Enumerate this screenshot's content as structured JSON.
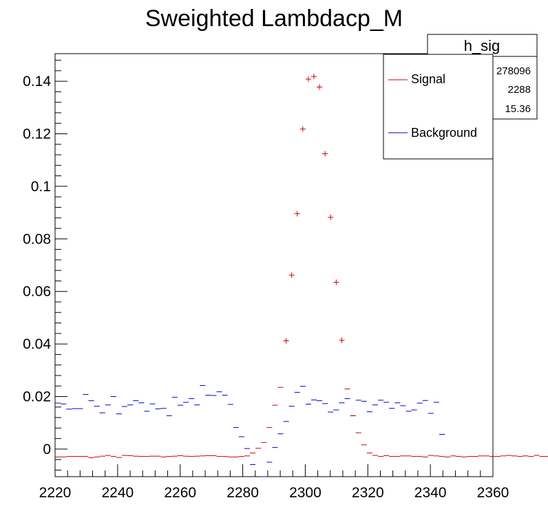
{
  "chart_data": {
    "type": "scatter",
    "title": "Sweighted Lambdacp_M",
    "xlabel": "",
    "ylabel": "",
    "xlim": [
      2220,
      2360
    ],
    "ylim": [
      -0.0105,
      0.1505
    ],
    "x_ticks": [
      2220,
      2240,
      2260,
      2280,
      2300,
      2320,
      2340,
      2360
    ],
    "y_ticks": [
      0,
      0.02,
      0.04,
      0.06,
      0.08,
      0.1,
      0.12,
      0.14
    ],
    "y_tick_labels": [
      "0",
      "0.02",
      "0.04",
      "0.06",
      "0.08",
      "0.1",
      "0.12",
      "0.14"
    ],
    "bin_start": 2220,
    "bin_width": 1.78,
    "stats_box": {
      "title": "h_sig",
      "values": [
        "278096",
        "2288",
        "15.36"
      ]
    },
    "legend": {
      "placement": "top-right"
    },
    "series": [
      {
        "name": "Signal",
        "color": "#cc0000",
        "values": [
          -0.003,
          -0.003,
          -0.0028,
          -0.0028,
          -0.0028,
          -0.0028,
          -0.0033,
          -0.003,
          -0.0027,
          -0.0024,
          -0.0028,
          -0.0032,
          -0.0024,
          -0.0025,
          -0.0027,
          -0.0028,
          -0.0028,
          -0.0027,
          -0.0027,
          -0.003,
          -0.0028,
          -0.0027,
          -0.0025,
          -0.0027,
          -0.0028,
          -0.0027,
          -0.0026,
          -0.0025,
          -0.0025,
          -0.0028,
          -0.0028,
          -0.003,
          -0.003,
          -0.0028,
          -0.0026,
          -0.0015,
          0.0003,
          0.0025,
          0.0082,
          0.0167,
          0.0235,
          0.0412,
          0.0662,
          0.0896,
          0.1218,
          0.1408,
          0.1418,
          0.1378,
          0.1124,
          0.0882,
          0.0635,
          0.0414,
          0.0229,
          0.0127,
          0.0062,
          0.0016,
          -0.0015,
          -0.0024,
          -0.0028,
          -0.0025,
          -0.0028,
          -0.0028,
          -0.0026,
          -0.0026,
          -0.0028,
          -0.0028,
          -0.003,
          -0.0024,
          -0.0026,
          -0.0028,
          -0.003,
          -0.0026,
          -0.0028,
          -0.003,
          -0.0028,
          -0.0028,
          -0.0026,
          -0.0026,
          -0.0028,
          -0.0028,
          -0.0026,
          -0.0024,
          -0.0026,
          -0.0028,
          -0.0026,
          -0.0028,
          -0.0024,
          -0.0028,
          -0.0028,
          -0.0024,
          -0.001
        ]
      },
      {
        "name": "Background",
        "color": "#0000cc",
        "values": [
          0.0175,
          0.0172,
          0.0152,
          0.0154,
          0.0154,
          0.0208,
          0.0184,
          0.0163,
          0.0138,
          0.0168,
          0.02,
          0.0134,
          0.0162,
          0.0168,
          0.0184,
          0.0176,
          0.0144,
          0.0172,
          0.0153,
          0.0155,
          0.0127,
          0.0197,
          0.0167,
          0.0178,
          0.0192,
          0.0168,
          0.0242,
          0.0205,
          0.0204,
          0.0218,
          0.0205,
          0.017,
          0.0082,
          0.0047,
          0.0002,
          -0.0059,
          null,
          -0.0105,
          -0.005,
          0.0006,
          0.0058,
          0.0105,
          0.0163,
          0.0216,
          0.0239,
          0.0171,
          0.0187,
          0.0184,
          0.0173,
          0.0141,
          0.0149,
          0.0176,
          0.0192,
          0.0127,
          0.0186,
          0.0182,
          0.0142,
          0.0168,
          0.0186,
          0.0178,
          0.0155,
          0.0176,
          0.0165,
          0.0144,
          0.0149,
          0.0175,
          0.0185,
          0.0136,
          0.0178,
          0.0056
        ]
      }
    ]
  }
}
